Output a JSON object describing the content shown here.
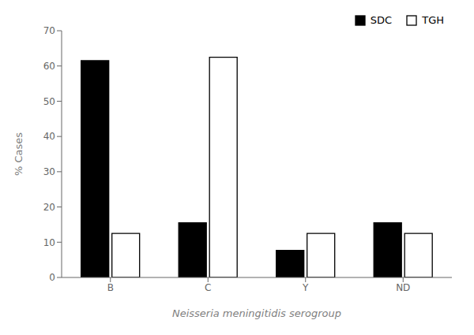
{
  "chart_data": {
    "type": "bar",
    "categories": [
      "B",
      "C",
      "Y",
      "ND"
    ],
    "series": [
      {
        "name": "SDC",
        "color": "#000000",
        "values": [
          61.5,
          15.5,
          7.7,
          15.5
        ]
      },
      {
        "name": "TGH",
        "color": "#ffffff",
        "values": [
          12.5,
          62.5,
          12.5,
          12.5
        ]
      }
    ],
    "xlabel": "Neisseria meningitidis serogroup",
    "ylabel": "% Cases",
    "ylim": [
      0,
      70
    ],
    "yticks": [
      0,
      10,
      20,
      30,
      40,
      50,
      60,
      70
    ],
    "legend": "upper right",
    "grid": false
  }
}
